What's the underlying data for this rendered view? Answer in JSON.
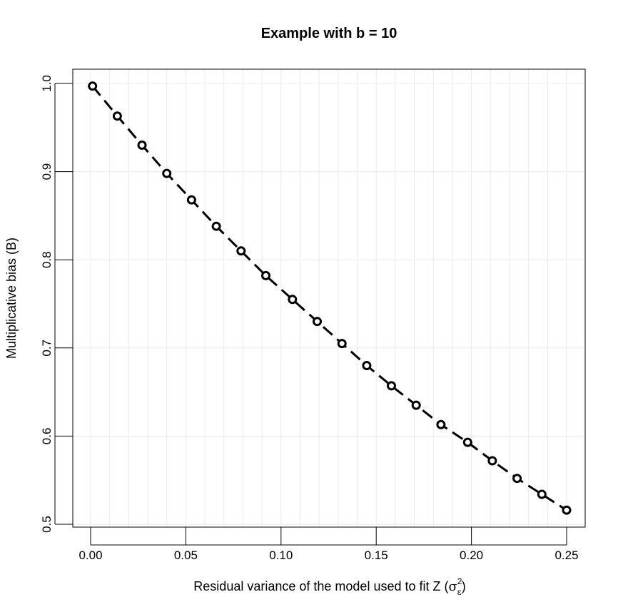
{
  "chart_data": {
    "type": "line",
    "title": "Example with b = 10",
    "xlabel": {
      "text": "Residual variance of the model used to fit Z",
      "symbol": "σ",
      "superscript": "2",
      "subscript": "ε"
    },
    "ylabel": "Multiplicative bias (B)",
    "xlim": [
      0.0,
      0.25
    ],
    "ylim": [
      0.5,
      1.0
    ],
    "x_ticks": [
      "0.00",
      "0.05",
      "0.10",
      "0.15",
      "0.20",
      "0.25"
    ],
    "y_ticks": [
      "0.5",
      "0.6",
      "0.7",
      "0.8",
      "0.9",
      "1.0"
    ],
    "grid": true,
    "line_style": "dashed",
    "marker": "open-circle",
    "series": [
      {
        "x": [
          0.001,
          0.014,
          0.027,
          0.04,
          0.053,
          0.066,
          0.079,
          0.092,
          0.106,
          0.119,
          0.132,
          0.145,
          0.158,
          0.171,
          0.184,
          0.198,
          0.211,
          0.224,
          0.237,
          0.25
        ],
        "y": [
          0.997,
          0.963,
          0.93,
          0.898,
          0.868,
          0.838,
          0.81,
          0.782,
          0.755,
          0.73,
          0.705,
          0.68,
          0.657,
          0.635,
          0.613,
          0.593,
          0.572,
          0.552,
          0.534,
          0.516
        ]
      }
    ],
    "colors": {
      "line": "#000000",
      "grid": "#ebebeb",
      "background": "#ffffff"
    }
  }
}
